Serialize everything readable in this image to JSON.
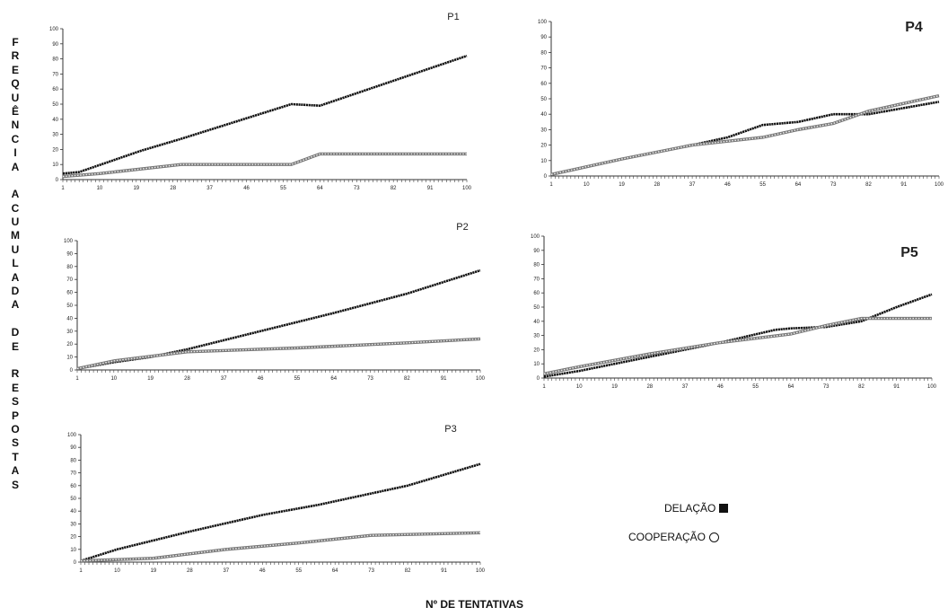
{
  "figure": {
    "y_label": "FREQUÊNCIA ACUMULADA DE RESPOSTAS",
    "x_label": "Nº DE TENTATIVAS",
    "legend": [
      {
        "label": "DELAÇÃO",
        "marker": "filled-square"
      },
      {
        "label": "COOPERAÇÃO",
        "marker": "hollow-circle"
      }
    ]
  },
  "chart_data": [
    {
      "type": "line",
      "title": "P1",
      "x_ticks": [
        "1",
        "10",
        "19",
        "28",
        "37",
        "46",
        "55",
        "64",
        "73",
        "82",
        "91",
        "100"
      ],
      "y_ticks": [
        "0",
        "10",
        "20",
        "30",
        "40",
        "50",
        "60",
        "70",
        "80",
        "90",
        "100"
      ],
      "xlim": [
        1,
        100
      ],
      "ylim": [
        0,
        100
      ],
      "series": [
        {
          "name": "DELAÇÃO",
          "x": [
            1,
            5,
            20,
            30,
            57,
            64,
            100
          ],
          "y": [
            4,
            5,
            19,
            27,
            50,
            49,
            82
          ]
        },
        {
          "name": "COOPERAÇÃO",
          "x": [
            1,
            10,
            30,
            57,
            64,
            100
          ],
          "y": [
            2,
            4,
            10,
            10,
            17,
            17
          ]
        }
      ]
    },
    {
      "type": "line",
      "title": "P2",
      "x_ticks": [
        "1",
        "10",
        "19",
        "28",
        "37",
        "46",
        "55",
        "64",
        "73",
        "82",
        "91",
        "100"
      ],
      "y_ticks": [
        "0",
        "10",
        "20",
        "30",
        "40",
        "50",
        "60",
        "70",
        "80",
        "90",
        "100"
      ],
      "xlim": [
        1,
        100
      ],
      "ylim": [
        0,
        100
      ],
      "series": [
        {
          "name": "DELAÇÃO",
          "x": [
            1,
            10,
            19,
            28,
            46,
            64,
            82,
            100
          ],
          "y": [
            1,
            6,
            10,
            16,
            30,
            44,
            59,
            77
          ]
        },
        {
          "name": "COOPERAÇÃO",
          "x": [
            1,
            10,
            28,
            55,
            82,
            100
          ],
          "y": [
            1,
            7,
            14,
            17,
            21,
            24
          ]
        }
      ]
    },
    {
      "type": "line",
      "title": "P3",
      "x_ticks": [
        "1",
        "10",
        "19",
        "28",
        "37",
        "46",
        "55",
        "64",
        "73",
        "82",
        "91",
        "100"
      ],
      "y_ticks": [
        "0",
        "10",
        "20",
        "30",
        "40",
        "50",
        "60",
        "70",
        "80",
        "90",
        "100"
      ],
      "xlim": [
        1,
        100
      ],
      "ylim": [
        0,
        100
      ],
      "series": [
        {
          "name": "DELAÇÃO",
          "x": [
            1,
            10,
            28,
            46,
            60,
            82,
            100
          ],
          "y": [
            1,
            10,
            24,
            37,
            45,
            60,
            77
          ]
        },
        {
          "name": "COOPERAÇÃO",
          "x": [
            1,
            19,
            37,
            55,
            73,
            100
          ],
          "y": [
            1,
            3,
            10,
            15,
            21,
            23
          ]
        }
      ]
    },
    {
      "type": "line",
      "title": "P4",
      "x_ticks": [
        "1",
        "10",
        "19",
        "28",
        "37",
        "46",
        "55",
        "64",
        "73",
        "82",
        "91",
        "100"
      ],
      "y_ticks": [
        "0",
        "10",
        "20",
        "30",
        "40",
        "50",
        "60",
        "70",
        "80",
        "90",
        "100"
      ],
      "xlim": [
        1,
        100
      ],
      "ylim": [
        0,
        100
      ],
      "series": [
        {
          "name": "DELAÇÃO",
          "x": [
            1,
            19,
            37,
            46,
            55,
            64,
            73,
            82,
            91,
            100
          ],
          "y": [
            1,
            11,
            20,
            25,
            33,
            35,
            40,
            40,
            44,
            48
          ]
        },
        {
          "name": "COOPERAÇÃO",
          "x": [
            1,
            19,
            37,
            55,
            64,
            73,
            82,
            91,
            100
          ],
          "y": [
            1,
            11,
            20,
            25,
            30,
            34,
            42,
            47,
            52
          ]
        }
      ]
    },
    {
      "type": "line",
      "title": "P5",
      "x_ticks": [
        "1",
        "10",
        "19",
        "28",
        "37",
        "46",
        "55",
        "64",
        "73",
        "82",
        "91",
        "100"
      ],
      "y_ticks": [
        "0",
        "10",
        "20",
        "30",
        "40",
        "50",
        "60",
        "70",
        "80",
        "90",
        "100"
      ],
      "xlim": [
        1,
        100
      ],
      "ylim": [
        0,
        100
      ],
      "series": [
        {
          "name": "DELAÇÃO",
          "x": [
            1,
            10,
            19,
            28,
            46,
            60,
            64,
            73,
            82,
            91,
            100
          ],
          "y": [
            1,
            5,
            10,
            15,
            25,
            34,
            35,
            36,
            40,
            50,
            59
          ]
        },
        {
          "name": "COOPERAÇÃO",
          "x": [
            1,
            10,
            28,
            46,
            64,
            73,
            82,
            91,
            100
          ],
          "y": [
            3,
            8,
            17,
            25,
            31,
            37,
            42,
            42,
            42
          ]
        }
      ]
    }
  ]
}
